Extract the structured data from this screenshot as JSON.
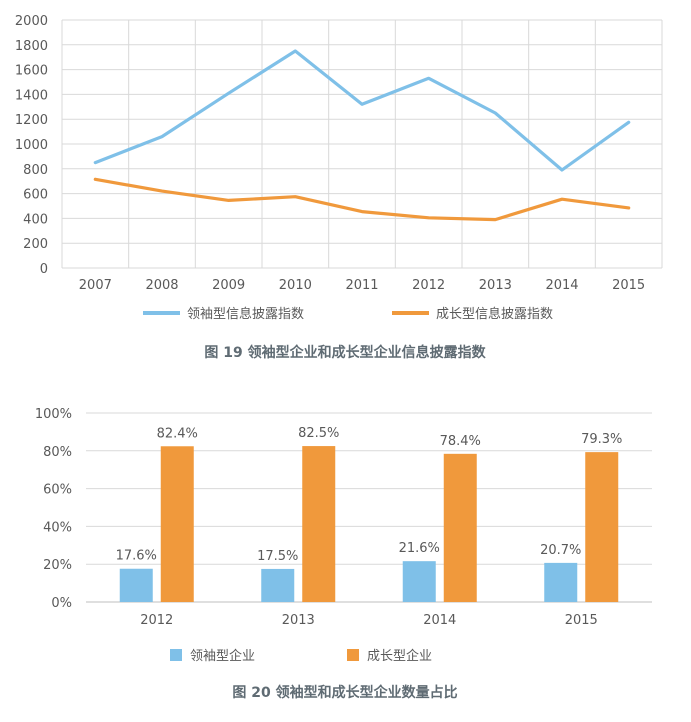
{
  "colors": {
    "primary": "#7fc0e8",
    "secondary": "#f0993c"
  },
  "charts": [
    {
      "caption": "图 19   领袖型企业和成长型企业信息披露指数",
      "chart_data": {
        "type": "line",
        "categories": [
          "2007",
          "2008",
          "2009",
          "2010",
          "2011",
          "2012",
          "2013",
          "2014",
          "2015"
        ],
        "ylim": [
          0,
          2000
        ],
        "yticks": [
          "0",
          "200",
          "400",
          "600",
          "800",
          "1000",
          "1200",
          "1400",
          "1600",
          "1800",
          "2000"
        ],
        "series": [
          {
            "name": "领袖型信息披露指数",
            "color": "#7fc0e8",
            "values": [
              850,
              1060,
              1410,
              1750,
              1320,
              1530,
              1250,
              790,
              1175
            ]
          },
          {
            "name": "成长型信息披露指数",
            "color": "#f0993c",
            "values": [
              715,
              620,
              545,
              575,
              455,
              405,
              390,
              555,
              485
            ]
          }
        ],
        "legend": "bottom",
        "grid": true
      }
    },
    {
      "caption": "图 20   领袖型和成长型企业数量占比",
      "chart_data": {
        "type": "bar",
        "categories": [
          "2012",
          "2013",
          "2014",
          "2015"
        ],
        "ylim": [
          0,
          100
        ],
        "yticks": [
          "0%",
          "20%",
          "40%",
          "60%",
          "80%",
          "100%"
        ],
        "series": [
          {
            "name": "领袖型企业",
            "color": "#7fc0e8",
            "values": [
              17.6,
              17.5,
              21.6,
              20.7
            ],
            "labels": [
              "17.6%",
              "17.5%",
              "21.6%",
              "20.7%"
            ]
          },
          {
            "name": "成长型企业",
            "color": "#f0993c",
            "values": [
              82.4,
              82.5,
              78.4,
              79.3
            ],
            "labels": [
              "82.4%",
              "82.5%",
              "78.4%",
              "79.3%"
            ]
          }
        ],
        "legend": "bottom",
        "grid": true
      }
    }
  ]
}
